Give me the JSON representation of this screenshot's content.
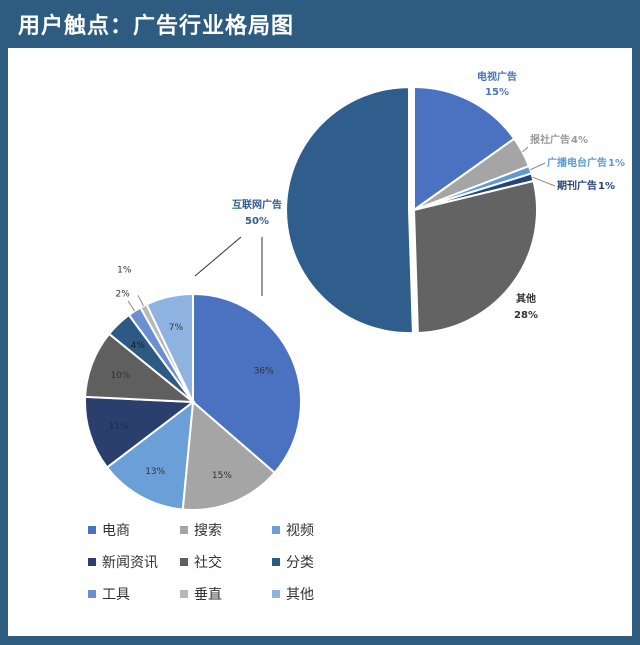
{
  "page": {
    "title": "用户触点：广告行业格局图"
  },
  "chart_data": [
    {
      "type": "pie",
      "categories": [
        "电视广告",
        "报社广告",
        "广播电台广告",
        "期刊广告",
        "其他",
        "互联网广告"
      ],
      "values": [
        15,
        4,
        1,
        1,
        28,
        50
      ],
      "labels": [
        "15%",
        "4%",
        "1%",
        "1%",
        "28%",
        "50%"
      ],
      "colors": [
        "#4a72c0",
        "#a5a5a5",
        "#5b9bd5",
        "#264478",
        "#636363",
        "#2f5d8c"
      ],
      "label_colors": [
        "#4a72c0",
        "#999999",
        "#5b9bd5",
        "#264478",
        "#333333",
        "#2f5d8c"
      ]
    },
    {
      "type": "pie",
      "parent_category": "互联网广告",
      "categories": [
        "电商",
        "搜索",
        "视频",
        "新闻资讯",
        "社交",
        "分类",
        "工具",
        "垂直",
        "其他"
      ],
      "values": [
        36,
        15,
        13,
        11,
        10,
        4,
        2,
        1,
        7
      ],
      "labels": [
        "36%",
        "15%",
        "13%",
        "11%",
        "10%",
        "4%",
        "2%",
        "1%",
        "7%"
      ],
      "colors": [
        "#4a72c0",
        "#a5a5a5",
        "#6b9fd8",
        "#2a3f6e",
        "#5f5f5f",
        "#2c5a85",
        "#6a8fd3",
        "#b8b8b8",
        "#8fb3e0"
      ]
    }
  ]
}
